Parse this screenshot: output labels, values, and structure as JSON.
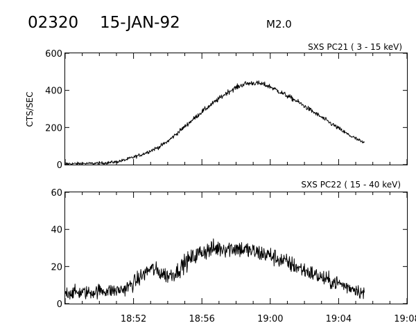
{
  "header": {
    "event_id": "02320",
    "date": "15-JAN-92",
    "flare_class": "M2.0"
  },
  "chart_data": [
    {
      "type": "line",
      "title": "SXS PC21  (  3 - 15 keV)",
      "xlabel": "",
      "ylabel": "CTS/SEC",
      "xlim": [
        "18:48",
        "19:08"
      ],
      "ylim": [
        0,
        600
      ],
      "x_ticks": [
        "18:52",
        "18:56",
        "19:00",
        "19:04",
        "19:08"
      ],
      "show_x_tick_labels": false,
      "y_ticks": [
        0,
        200,
        400,
        600
      ],
      "grid": false,
      "series": [
        {
          "x": [
            "18:48:00",
            "18:48:30",
            "18:49:00",
            "18:49:30",
            "18:50:00",
            "18:50:30",
            "18:51:00",
            "18:51:30",
            "18:52:00",
            "18:52:30",
            "18:53:00",
            "18:53:30",
            "18:54:00",
            "18:54:30",
            "18:55:00",
            "18:55:30",
            "18:56:00",
            "18:56:30",
            "18:57:00",
            "18:57:30",
            "18:58:00",
            "18:58:30",
            "18:59:00",
            "18:59:30",
            "19:00:00",
            "19:00:30",
            "19:01:00",
            "19:01:30",
            "19:02:00",
            "19:02:30",
            "19:03:00",
            "19:03:30",
            "19:04:00",
            "19:04:30",
            "19:05:00",
            "19:05:30"
          ],
          "values": [
            5,
            5,
            6,
            6,
            8,
            10,
            15,
            25,
            40,
            55,
            75,
            95,
            125,
            165,
            205,
            245,
            285,
            320,
            355,
            390,
            415,
            435,
            440,
            435,
            420,
            395,
            370,
            345,
            315,
            285,
            255,
            225,
            195,
            165,
            140,
            115
          ],
          "noise_amplitude": 14
        }
      ]
    },
    {
      "type": "line",
      "title": "SXS PC22  ( 15 - 40 keV)",
      "xlabel": "",
      "ylabel": "",
      "xlim": [
        "18:48",
        "19:08"
      ],
      "ylim": [
        0,
        60
      ],
      "x_ticks": [
        "18:52",
        "18:56",
        "19:00",
        "19:04",
        "19:08"
      ],
      "show_x_tick_labels": true,
      "y_ticks": [
        0,
        20,
        40,
        60
      ],
      "grid": false,
      "series": [
        {
          "x": [
            "18:48:00",
            "18:48:30",
            "18:49:00",
            "18:49:30",
            "18:50:00",
            "18:50:30",
            "18:51:00",
            "18:51:30",
            "18:52:00",
            "18:52:30",
            "18:53:00",
            "18:53:30",
            "18:54:00",
            "18:54:30",
            "18:55:00",
            "18:55:30",
            "18:56:00",
            "18:56:30",
            "18:57:00",
            "18:57:30",
            "18:58:00",
            "18:58:30",
            "18:59:00",
            "18:59:30",
            "19:00:00",
            "19:00:30",
            "19:01:00",
            "19:01:30",
            "19:02:00",
            "19:02:30",
            "19:03:00",
            "19:03:30",
            "19:04:00",
            "19:04:30",
            "19:05:00",
            "19:05:30"
          ],
          "values": [
            6,
            6,
            6,
            6,
            7,
            7,
            7,
            8,
            11,
            15,
            19,
            17,
            15,
            17,
            22,
            25,
            28,
            29,
            30,
            30,
            30,
            29,
            28,
            27,
            26,
            24,
            22,
            20,
            18,
            16,
            14,
            12,
            11,
            9,
            8,
            5
          ],
          "noise_amplitude": 5
        }
      ]
    }
  ]
}
